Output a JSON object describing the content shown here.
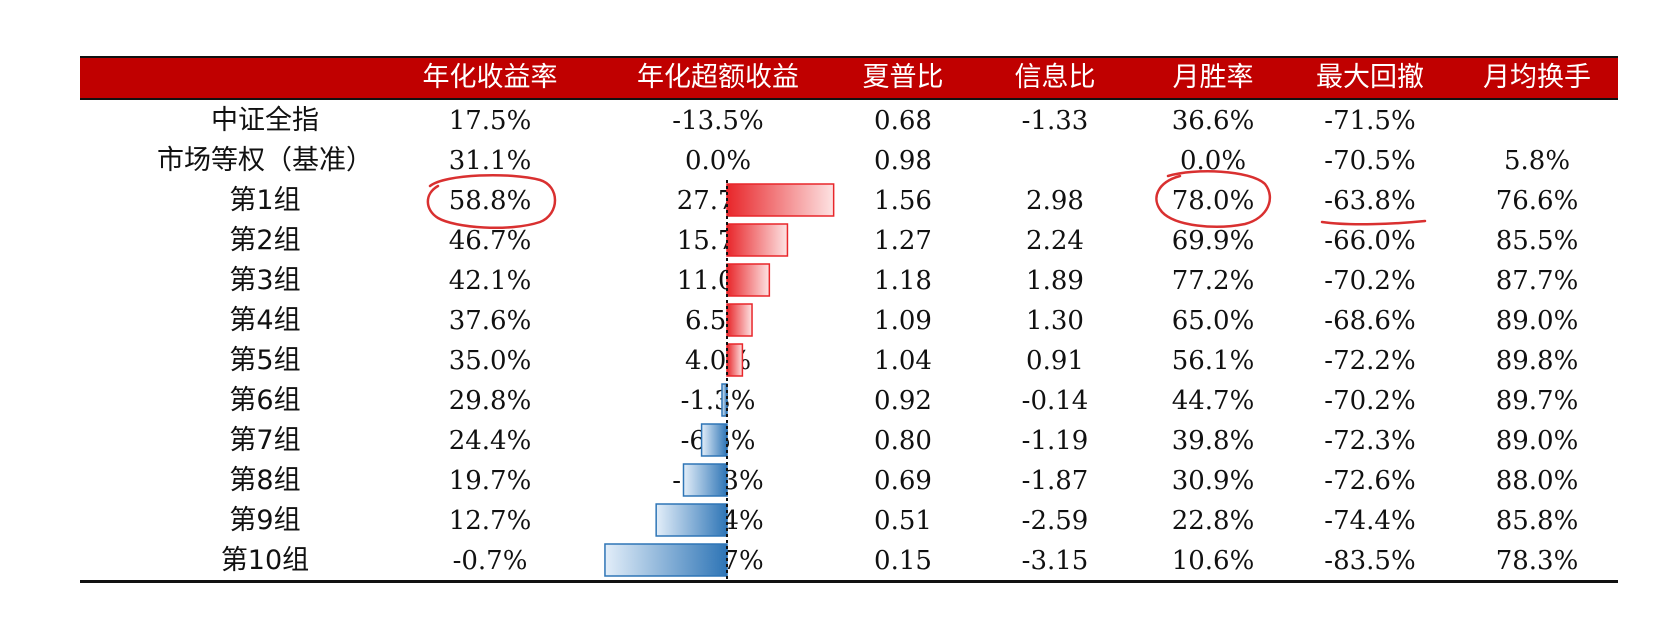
{
  "table": {
    "columns": [
      "",
      "年化收益率",
      "年化超额收益",
      "夏普比",
      "信息比",
      "月胜率",
      "最大回撤",
      "月均换手"
    ],
    "rows": [
      {
        "name": "中证全指",
        "annual_return": "17.5%",
        "excess_return": "-13.5%",
        "excess_value": null,
        "sharpe": "0.68",
        "info_ratio": "-1.33",
        "win_rate": "36.6%",
        "max_drawdown": "-71.5%",
        "turnover": ""
      },
      {
        "name": "市场等权（基准）",
        "annual_return": "31.1%",
        "excess_return": "0.0%",
        "excess_value": null,
        "sharpe": "0.98",
        "info_ratio": "",
        "win_rate": "0.0%",
        "max_drawdown": "-70.5%",
        "turnover": "5.8%"
      },
      {
        "name": "第1组",
        "annual_return": "58.8%",
        "excess_return": "27.7%",
        "excess_value": 27.7,
        "sharpe": "1.56",
        "info_ratio": "2.98",
        "win_rate": "78.0%",
        "max_drawdown": "-63.8%",
        "turnover": "76.6%"
      },
      {
        "name": "第2组",
        "annual_return": "46.7%",
        "excess_return": "15.7%",
        "excess_value": 15.7,
        "sharpe": "1.27",
        "info_ratio": "2.24",
        "win_rate": "69.9%",
        "max_drawdown": "-66.0%",
        "turnover": "85.5%"
      },
      {
        "name": "第3组",
        "annual_return": "42.1%",
        "excess_return": "11.0%",
        "excess_value": 11.0,
        "sharpe": "1.18",
        "info_ratio": "1.89",
        "win_rate": "77.2%",
        "max_drawdown": "-70.2%",
        "turnover": "87.7%"
      },
      {
        "name": "第4组",
        "annual_return": "37.6%",
        "excess_return": "6.5%",
        "excess_value": 6.5,
        "sharpe": "1.09",
        "info_ratio": "1.30",
        "win_rate": "65.0%",
        "max_drawdown": "-68.6%",
        "turnover": "89.0%"
      },
      {
        "name": "第5组",
        "annual_return": "35.0%",
        "excess_return": "4.0%",
        "excess_value": 4.0,
        "sharpe": "1.04",
        "info_ratio": "0.91",
        "win_rate": "56.1%",
        "max_drawdown": "-72.2%",
        "turnover": "89.8%"
      },
      {
        "name": "第6组",
        "annual_return": "29.8%",
        "excess_return": "-1.3%",
        "excess_value": -1.3,
        "sharpe": "0.92",
        "info_ratio": "-0.14",
        "win_rate": "44.7%",
        "max_drawdown": "-70.2%",
        "turnover": "89.7%"
      },
      {
        "name": "第7组",
        "annual_return": "24.4%",
        "excess_return": "-6.6%",
        "excess_value": -6.6,
        "sharpe": "0.80",
        "info_ratio": "-1.19",
        "win_rate": "39.8%",
        "max_drawdown": "-72.3%",
        "turnover": "89.0%"
      },
      {
        "name": "第8组",
        "annual_return": "19.7%",
        "excess_return": "-11.3%",
        "excess_value": -11.3,
        "sharpe": "0.69",
        "info_ratio": "-1.87",
        "win_rate": "30.9%",
        "max_drawdown": "-72.6%",
        "turnover": "88.0%"
      },
      {
        "name": "第9组",
        "annual_return": "12.7%",
        "excess_return": "-18.4%",
        "excess_value": -18.4,
        "sharpe": "0.51",
        "info_ratio": "-2.59",
        "win_rate": "22.8%",
        "max_drawdown": "-74.4%",
        "turnover": "85.8%"
      },
      {
        "name": "第10组",
        "annual_return": "-0.7%",
        "excess_return": "-31.7%",
        "excess_value": -31.7,
        "sharpe": "0.15",
        "info_ratio": "-3.15",
        "win_rate": "10.6%",
        "max_drawdown": "-83.5%",
        "turnover": "78.3%"
      }
    ]
  },
  "colors": {
    "header_bg": "#c00000",
    "header_text": "#ffffff",
    "positive_bar": "#e8262a",
    "negative_bar": "#2e75b6",
    "annotation": "#d93030"
  },
  "annotations": [
    {
      "type": "ellipse",
      "target": "第1组 年化收益率"
    },
    {
      "type": "ellipse",
      "target": "第1组 月胜率"
    },
    {
      "type": "underline",
      "target": "第1组 最大回撤"
    }
  ]
}
